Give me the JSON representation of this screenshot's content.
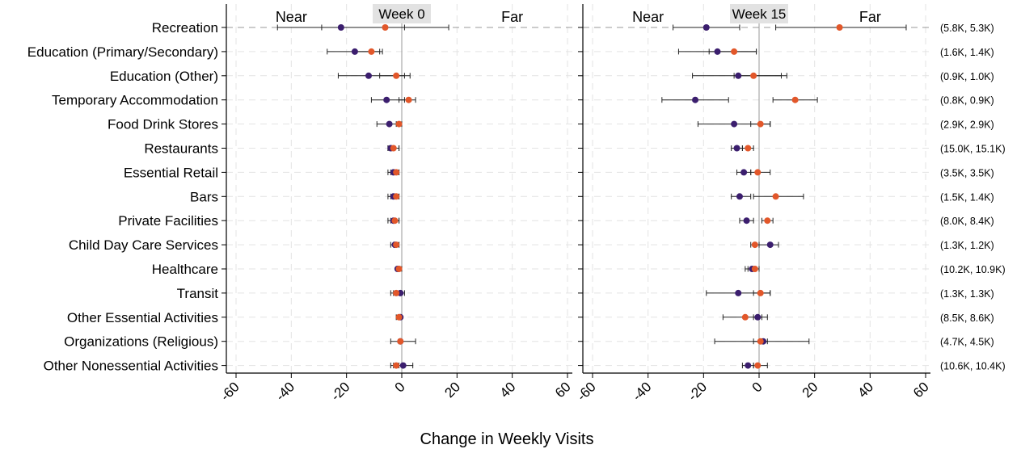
{
  "chart_data": {
    "type": "scatter",
    "subtype": "dot-and-whisker, faceted",
    "xlabel": "Change in Weekly Visits",
    "xlim": [
      -60,
      60
    ],
    "xticks": [
      "-60",
      "-40",
      "-20",
      "0",
      "20",
      "40",
      "60"
    ],
    "grid": true,
    "categories": [
      "Recreation",
      "Education (Primary/Secondary)",
      "Education (Other)",
      "Temporary Accommodation",
      "Food Drink Stores",
      "Restaurants",
      "Essential Retail",
      "Bars",
      "Private Facilities",
      "Child Day Care Services",
      "Healthcare",
      "Transit",
      "Other Essential Activities",
      "Organizations (Religious)",
      "Other Nonessential Activities"
    ],
    "right_labels": [
      "(5.8K, 5.3K)",
      "(1.6K, 1.4K)",
      "(0.9K, 1.0K)",
      "(0.8K, 0.9K)",
      "(2.9K, 2.9K)",
      "(15.0K, 15.1K)",
      "(3.5K, 3.5K)",
      "(1.5K, 1.4K)",
      "(8.0K, 8.4K)",
      "(1.3K, 1.2K)",
      "(10.2K, 10.9K)",
      "(1.3K, 1.3K)",
      "(8.5K, 8.6K)",
      "(4.7K, 4.5K)",
      "(10.6K, 10.4K)"
    ],
    "series_colors": {
      "near": "#3b1e6e",
      "far": "#e2572a"
    },
    "panels": [
      {
        "title": "Week 0",
        "annotations": {
          "left": "Near",
          "right": "Far"
        },
        "series": [
          {
            "key": "near",
            "values": [
              -22,
              -17,
              -12,
              -5.5,
              -4.5,
              -4,
              -3,
              -3,
              -3,
              -2.5,
              -1.5,
              -0.5,
              -0.5,
              -0.5,
              0.5
            ],
            "lo": [
              -45,
              -27,
              -23,
              -11,
              -9,
              -5,
              -5,
              -5,
              -5,
              -4,
              -2,
              -3,
              -1,
              -4,
              -3
            ],
            "hi": [
              1,
              -8,
              3,
              1,
              -1,
              -1,
              -1,
              -1,
              -1,
              -1,
              -1,
              1,
              0,
              5,
              4
            ]
          },
          {
            "key": "far",
            "values": [
              -6,
              -11,
              -2,
              2.5,
              -1,
              -3,
              -2,
              -2,
              -2.5,
              -2,
              -1,
              -2,
              -1,
              -0.5,
              -2
            ],
            "lo": [
              -29,
              -17,
              -8,
              -1,
              -2,
              -5,
              -4,
              -4,
              -4,
              -3,
              -2,
              -4,
              -2,
              -1,
              -4
            ],
            "hi": [
              17,
              -7,
              1,
              5,
              0,
              -1,
              -1,
              -1,
              -1,
              -1,
              0,
              0,
              0,
              0,
              -1
            ]
          }
        ]
      },
      {
        "title": "Week 15",
        "annotations": {
          "left": "Near",
          "right": "Far"
        },
        "series": [
          {
            "key": "near",
            "values": [
              -19,
              -15,
              -7.5,
              -23,
              -9,
              -8,
              -5.5,
              -7,
              -4.5,
              4,
              -2.5,
              -7.5,
              -0.5,
              1.5,
              -4
            ],
            "lo": [
              -31,
              -29,
              -24,
              -35,
              -22,
              -10,
              -8,
              -10,
              -7,
              0,
              -5,
              -19,
              -2,
              -16,
              -6
            ],
            "hi": [
              -7,
              -1,
              8,
              -11,
              4,
              -6,
              -3,
              -3,
              -2,
              7,
              0,
              4,
              1,
              18,
              -2
            ]
          },
          {
            "key": "far",
            "values": [
              29,
              -9,
              -2,
              13,
              0.5,
              -4,
              -0.5,
              6,
              3,
              -1.5,
              -1.5,
              0.5,
              -5,
              0.5,
              -0.5
            ],
            "lo": [
              6,
              -18,
              -9,
              5,
              -3,
              -6,
              -3,
              -2,
              1,
              -3,
              -4,
              -2,
              -13,
              -2,
              -2
            ],
            "hi": [
              53,
              -1,
              10,
              21,
              4,
              -2,
              4,
              16,
              5,
              0,
              0,
              4,
              3,
              3,
              3
            ]
          }
        ]
      }
    ]
  }
}
